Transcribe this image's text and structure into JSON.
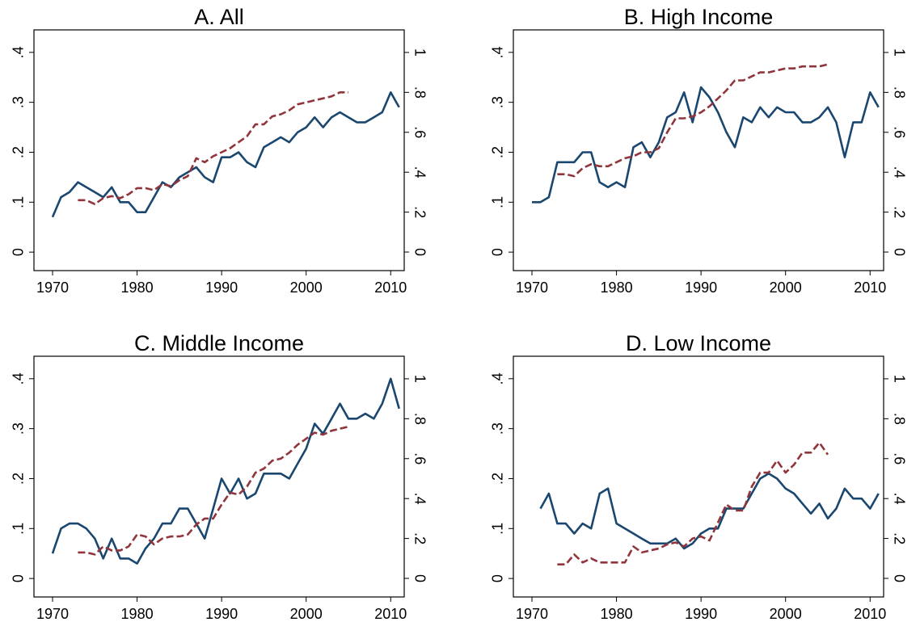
{
  "chart_data": [
    {
      "type": "line",
      "title": "A. All",
      "x": [
        1970,
        1971,
        1972,
        1973,
        1974,
        1975,
        1976,
        1977,
        1978,
        1979,
        1980,
        1981,
        1982,
        1983,
        1984,
        1985,
        1986,
        1987,
        1988,
        1989,
        1990,
        1991,
        1992,
        1993,
        1994,
        1995,
        1996,
        1997,
        1998,
        1999,
        2000,
        2001,
        2002,
        2003,
        2004,
        2005,
        2006,
        2007,
        2008,
        2009,
        2010,
        2011
      ],
      "xlim": [
        1967.8,
        2011.6
      ],
      "xticks": [
        1970,
        1980,
        1990,
        2000,
        2010
      ],
      "ylim": [
        -0.037,
        0.445
      ],
      "yticks": [
        {
          "value": 0,
          "label": "0"
        },
        {
          "value": 0.1,
          "label": ".1"
        },
        {
          "value": 0.2,
          "label": ".2"
        },
        {
          "value": 0.3,
          "label": ".3"
        },
        {
          "value": 0.4,
          "label": ".4"
        }
      ],
      "y2lim": [
        -0.093,
        1.113
      ],
      "y2ticks": [
        {
          "value": 0,
          "label": "0"
        },
        {
          "value": 0.2,
          "label": ".2"
        },
        {
          "value": 0.4,
          "label": ".4"
        },
        {
          "value": 0.6,
          "label": ".6"
        },
        {
          "value": 0.8,
          "label": ".8"
        },
        {
          "value": 1,
          "label": "1"
        }
      ],
      "series": [
        {
          "color": "#1a476f",
          "values": [
            0.07,
            0.11,
            0.12,
            0.14,
            0.13,
            0.12,
            0.11,
            0.13,
            0.1,
            0.1,
            0.08,
            0.08,
            0.11,
            0.14,
            0.13,
            0.15,
            0.16,
            0.17,
            0.15,
            0.14,
            0.19,
            0.19,
            0.2,
            0.18,
            0.17,
            0.21,
            0.22,
            0.23,
            0.22,
            0.24,
            0.25,
            0.27,
            0.25,
            0.27,
            0.28,
            0.27,
            0.26,
            0.26,
            0.27,
            0.28,
            0.32,
            0.29
          ]
        },
        {
          "color": "#90353b",
          "axis": "y2",
          "dashed": true,
          "values": [
            null,
            null,
            null,
            0.26,
            0.26,
            0.24,
            0.27,
            0.28,
            0.27,
            0.29,
            0.32,
            0.32,
            0.31,
            0.34,
            0.33,
            0.36,
            0.38,
            0.47,
            0.45,
            0.48,
            0.5,
            0.52,
            0.55,
            0.58,
            0.64,
            0.64,
            0.68,
            0.69,
            0.71,
            0.74,
            0.75,
            0.76,
            0.77,
            0.78,
            0.8,
            0.8,
            null,
            null,
            null,
            null,
            null,
            null
          ]
        }
      ]
    },
    {
      "type": "line",
      "title": "B. High Income",
      "x": [
        1970,
        1971,
        1972,
        1973,
        1974,
        1975,
        1976,
        1977,
        1978,
        1979,
        1980,
        1981,
        1982,
        1983,
        1984,
        1985,
        1986,
        1987,
        1988,
        1989,
        1990,
        1991,
        1992,
        1993,
        1994,
        1995,
        1996,
        1997,
        1998,
        1999,
        2000,
        2001,
        2002,
        2003,
        2004,
        2005,
        2006,
        2007,
        2008,
        2009,
        2010,
        2011
      ],
      "xlim": [
        1967.8,
        2011.6
      ],
      "xticks": [
        1970,
        1980,
        1990,
        2000,
        2010
      ],
      "ylim": [
        -0.037,
        0.445
      ],
      "yticks": [
        {
          "value": 0,
          "label": "0"
        },
        {
          "value": 0.1,
          "label": ".1"
        },
        {
          "value": 0.2,
          "label": ".2"
        },
        {
          "value": 0.3,
          "label": ".3"
        },
        {
          "value": 0.4,
          "label": ".4"
        }
      ],
      "y2lim": [
        -0.093,
        1.113
      ],
      "y2ticks": [
        {
          "value": 0,
          "label": "0"
        },
        {
          "value": 0.2,
          "label": ".2"
        },
        {
          "value": 0.4,
          "label": ".4"
        },
        {
          "value": 0.6,
          "label": ".6"
        },
        {
          "value": 0.8,
          "label": ".8"
        },
        {
          "value": 1,
          "label": "1"
        }
      ],
      "series": [
        {
          "color": "#1a476f",
          "values": [
            0.1,
            0.1,
            0.11,
            0.18,
            0.18,
            0.18,
            0.2,
            0.2,
            0.14,
            0.13,
            0.14,
            0.13,
            0.21,
            0.22,
            0.19,
            0.22,
            0.27,
            0.28,
            0.32,
            0.26,
            0.33,
            0.31,
            0.28,
            0.24,
            0.21,
            0.27,
            0.26,
            0.29,
            0.27,
            0.29,
            0.28,
            0.28,
            0.26,
            0.26,
            0.27,
            0.29,
            0.26,
            0.19,
            0.26,
            0.26,
            0.32,
            0.29
          ]
        },
        {
          "color": "#90353b",
          "axis": "y2",
          "dashed": true,
          "values": [
            null,
            null,
            null,
            0.39,
            0.39,
            0.38,
            0.42,
            0.44,
            0.43,
            0.43,
            0.45,
            0.47,
            0.48,
            0.5,
            0.5,
            0.52,
            0.6,
            0.67,
            0.67,
            0.68,
            0.7,
            0.73,
            0.77,
            0.81,
            0.86,
            0.86,
            0.88,
            0.9,
            0.9,
            0.91,
            0.92,
            0.92,
            0.93,
            0.93,
            0.93,
            0.94,
            null,
            null,
            null,
            null,
            null,
            null
          ]
        }
      ]
    },
    {
      "type": "line",
      "title": "C. Middle Income",
      "x": [
        1970,
        1971,
        1972,
        1973,
        1974,
        1975,
        1976,
        1977,
        1978,
        1979,
        1980,
        1981,
        1982,
        1983,
        1984,
        1985,
        1986,
        1987,
        1988,
        1989,
        1990,
        1991,
        1992,
        1993,
        1994,
        1995,
        1996,
        1997,
        1998,
        1999,
        2000,
        2001,
        2002,
        2003,
        2004,
        2005,
        2006,
        2007,
        2008,
        2009,
        2010,
        2011
      ],
      "xlim": [
        1967.8,
        2011.6
      ],
      "xticks": [
        1970,
        1980,
        1990,
        2000,
        2010
      ],
      "ylim": [
        -0.037,
        0.445
      ],
      "yticks": [
        {
          "value": 0,
          "label": "0"
        },
        {
          "value": 0.1,
          "label": ".1"
        },
        {
          "value": 0.2,
          "label": ".2"
        },
        {
          "value": 0.3,
          "label": ".3"
        },
        {
          "value": 0.4,
          "label": ".4"
        }
      ],
      "y2lim": [
        -0.093,
        1.113
      ],
      "y2ticks": [
        {
          "value": 0,
          "label": "0"
        },
        {
          "value": 0.2,
          "label": ".2"
        },
        {
          "value": 0.4,
          "label": ".4"
        },
        {
          "value": 0.6,
          "label": ".6"
        },
        {
          "value": 0.8,
          "label": ".8"
        },
        {
          "value": 1,
          "label": "1"
        }
      ],
      "series": [
        {
          "color": "#1a476f",
          "values": [
            0.05,
            0.1,
            0.11,
            0.11,
            0.1,
            0.08,
            0.04,
            0.08,
            0.04,
            0.04,
            0.03,
            0.06,
            0.08,
            0.11,
            0.11,
            0.14,
            0.14,
            0.11,
            0.08,
            0.14,
            0.2,
            0.17,
            0.2,
            0.16,
            0.17,
            0.21,
            0.21,
            0.21,
            0.2,
            0.23,
            0.26,
            0.31,
            0.29,
            0.32,
            0.35,
            0.32,
            0.32,
            0.33,
            0.32,
            0.35,
            0.4,
            0.34
          ]
        },
        {
          "color": "#90353b",
          "axis": "y2",
          "dashed": true,
          "values": [
            null,
            null,
            null,
            0.13,
            0.13,
            0.12,
            0.16,
            0.14,
            0.14,
            0.16,
            0.22,
            0.21,
            0.17,
            0.2,
            0.21,
            0.21,
            0.22,
            0.27,
            0.3,
            0.3,
            0.37,
            0.43,
            0.42,
            0.46,
            0.53,
            0.55,
            0.59,
            0.6,
            0.63,
            0.67,
            0.7,
            0.73,
            0.72,
            0.74,
            0.75,
            0.76,
            null,
            null,
            null,
            null,
            null,
            null
          ]
        }
      ]
    },
    {
      "type": "line",
      "title": "D. Low Income",
      "x": [
        1970,
        1971,
        1972,
        1973,
        1974,
        1975,
        1976,
        1977,
        1978,
        1979,
        1980,
        1981,
        1982,
        1983,
        1984,
        1985,
        1986,
        1987,
        1988,
        1989,
        1990,
        1991,
        1992,
        1993,
        1994,
        1995,
        1996,
        1997,
        1998,
        1999,
        2000,
        2001,
        2002,
        2003,
        2004,
        2005,
        2006,
        2007,
        2008,
        2009,
        2010,
        2011
      ],
      "xlim": [
        1967.8,
        2011.6
      ],
      "xticks": [
        1970,
        1980,
        1990,
        2000,
        2010
      ],
      "ylim": [
        -0.037,
        0.445
      ],
      "yticks": [
        {
          "value": 0,
          "label": "0"
        },
        {
          "value": 0.1,
          "label": ".1"
        },
        {
          "value": 0.2,
          "label": ".2"
        },
        {
          "value": 0.3,
          "label": ".3"
        },
        {
          "value": 0.4,
          "label": ".4"
        }
      ],
      "y2lim": [
        -0.093,
        1.113
      ],
      "y2ticks": [
        {
          "value": 0,
          "label": "0"
        },
        {
          "value": 0.2,
          "label": ".2"
        },
        {
          "value": 0.4,
          "label": ".4"
        },
        {
          "value": 0.6,
          "label": ".6"
        },
        {
          "value": 0.8,
          "label": ".8"
        },
        {
          "value": 1,
          "label": "1"
        }
      ],
      "series": [
        {
          "color": "#1a476f",
          "values": [
            null,
            0.14,
            0.17,
            0.11,
            0.11,
            0.09,
            0.11,
            0.1,
            0.17,
            0.18,
            0.11,
            0.1,
            0.09,
            0.08,
            0.07,
            0.07,
            0.07,
            0.08,
            0.06,
            0.07,
            0.09,
            0.1,
            0.1,
            0.14,
            0.14,
            0.14,
            0.17,
            0.2,
            0.21,
            0.2,
            0.18,
            0.17,
            0.15,
            0.13,
            0.15,
            0.12,
            0.14,
            0.18,
            0.16,
            0.16,
            0.14,
            0.17
          ]
        },
        {
          "color": "#90353b",
          "axis": "y2",
          "dashed": true,
          "values": [
            null,
            null,
            null,
            0.07,
            0.07,
            0.12,
            0.08,
            0.1,
            0.08,
            0.08,
            0.08,
            0.08,
            0.16,
            0.13,
            0.14,
            0.15,
            0.17,
            0.18,
            0.16,
            0.2,
            0.21,
            0.19,
            0.28,
            0.37,
            0.34,
            0.34,
            0.46,
            0.53,
            0.53,
            0.59,
            0.53,
            0.57,
            0.63,
            0.63,
            0.68,
            0.62,
            null,
            null,
            null,
            null,
            null,
            null
          ]
        }
      ]
    }
  ]
}
